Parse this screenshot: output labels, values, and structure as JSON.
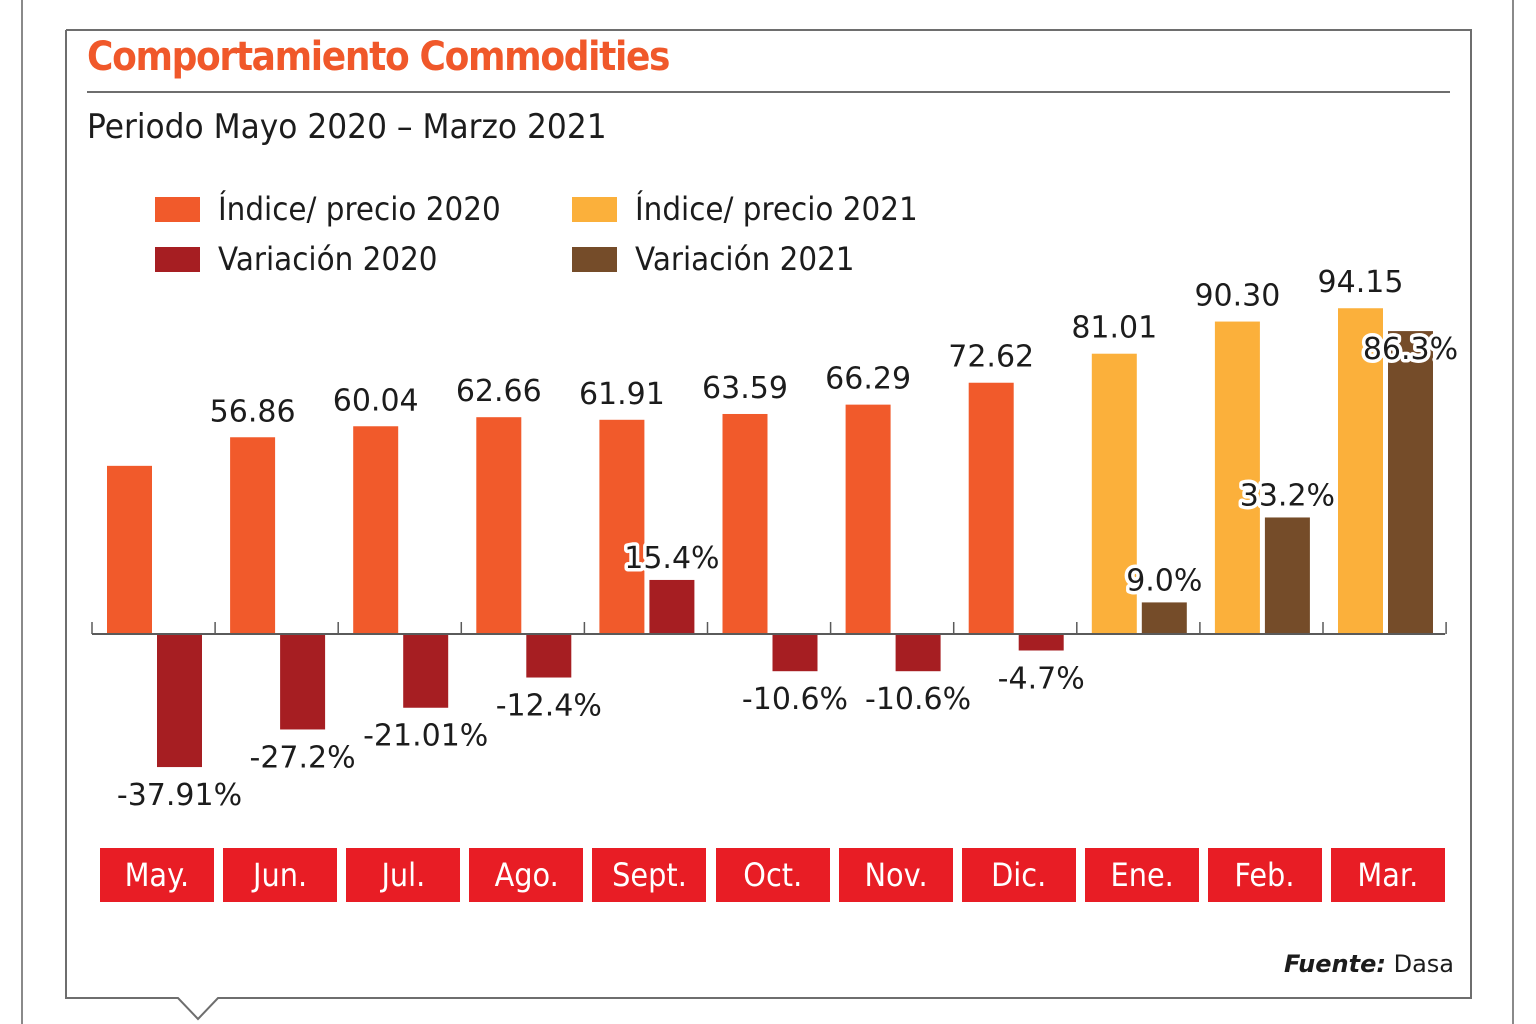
{
  "title": "Comportamiento Commodities",
  "subtitle": "Periodo Mayo 2020 – Marzo 2021",
  "source": {
    "label": "Fuente:",
    "value": "Dasa"
  },
  "legend": [
    {
      "label": "Índice/ precio 2020",
      "color": "#f15a2b"
    },
    {
      "label": "Índice/ precio 2021",
      "color": "#fbb03b"
    },
    {
      "label": "Variación 2020",
      "color": "#a61e22"
    },
    {
      "label": "Variación 2021",
      "color": "#754c29"
    }
  ],
  "chart_data": {
    "type": "bar",
    "title": "Comportamiento Commodities",
    "subtitle": "Periodo Mayo 2020 – Marzo 2021",
    "xlabel": "",
    "ylabel": "",
    "categories": [
      "May.",
      "Jun.",
      "Jul.",
      "Ago.",
      "Sept.",
      "Oct.",
      "Nov.",
      "Dic.",
      "Ene.",
      "Feb.",
      "Mar."
    ],
    "year_of_category": [
      2020,
      2020,
      2020,
      2020,
      2020,
      2020,
      2020,
      2020,
      2021,
      2021,
      2021
    ],
    "series": [
      {
        "name": "Índice/ precio",
        "values": [
          48.6,
          56.86,
          60.04,
          62.66,
          61.91,
          63.59,
          66.29,
          72.62,
          81.01,
          90.3,
          94.15
        ],
        "labels": [
          "",
          "56.86",
          "60.04",
          "62.66",
          "61.91",
          "63.59",
          "66.29",
          "72.62",
          "81.01",
          "90.30",
          "94.15"
        ],
        "colors": {
          "2020": "#f15a2b",
          "2021": "#fbb03b"
        }
      },
      {
        "name": "Variación",
        "unit": "%",
        "values": [
          -37.91,
          -27.2,
          -21.01,
          -12.4,
          15.4,
          -10.6,
          -10.6,
          -4.7,
          9.0,
          33.2,
          86.3
        ],
        "labels": [
          "-37.91%",
          "-27.2%",
          "-21.01%",
          "-12.4%",
          "15.4%",
          "-10.6%",
          "-10.6%",
          "-4.7%",
          "9.0%",
          "33.2%",
          "86.3%"
        ],
        "colors": {
          "2020": "#a61e22",
          "2021": "#754c29"
        }
      }
    ],
    "grid": false,
    "legend_position": "top-left",
    "baseline": 0,
    "month_label_color": "#e81d25"
  }
}
